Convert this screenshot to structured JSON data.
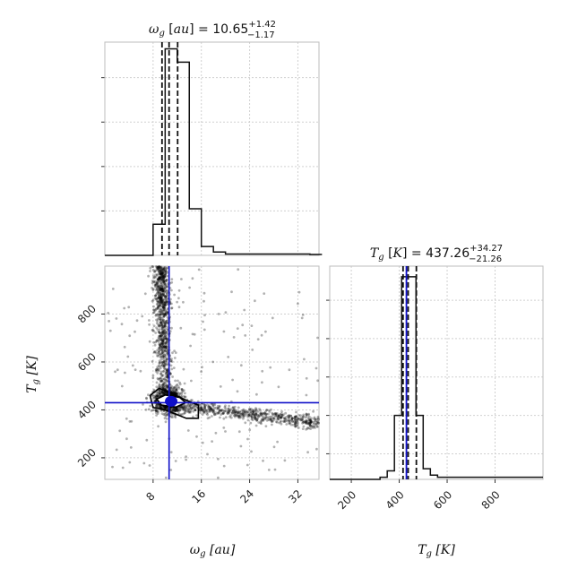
{
  "chart_data": {
    "type": "corner-plot",
    "parameters": [
      {
        "id": "omega_g",
        "symbol": "ω",
        "subscript": "g",
        "unit": "au",
        "median": "10.65",
        "plus": "+1.42",
        "minus": "−1.17",
        "truth": 10.65,
        "quantiles": [
          9.48,
          10.65,
          12.07
        ],
        "hist_edges": [
          0,
          2,
          4,
          6,
          8,
          10,
          12,
          14,
          16,
          18,
          20,
          22,
          24,
          26,
          28,
          30,
          32,
          34,
          36
        ],
        "hist_counts": [
          0,
          0,
          0,
          0,
          0.14,
          0.93,
          0.87,
          0.21,
          0.04,
          0.015,
          0.006,
          0.006,
          0.006,
          0.006,
          0.006,
          0.006,
          0.006,
          0.004
        ],
        "range": [
          0,
          35.5
        ],
        "ticks": [
          8,
          16,
          24,
          32
        ],
        "tick_labels": [
          "8",
          "16",
          "24",
          "32"
        ]
      },
      {
        "id": "T_g",
        "symbol": "T",
        "subscript": "g",
        "unit": "K",
        "median": "437.26",
        "plus": "+34.27",
        "minus": "−21.26",
        "truth": 430,
        "quantiles": [
          416,
          437.26,
          471.5
        ],
        "hist_edges": [
          110,
          140,
          170,
          200,
          230,
          260,
          290,
          320,
          350,
          380,
          410,
          440,
          470,
          500,
          530,
          560,
          590,
          620,
          650,
          680,
          710,
          740,
          770,
          800,
          830,
          860,
          890,
          920,
          950,
          980,
          1000
        ],
        "hist_counts": [
          0,
          0,
          0,
          0,
          0,
          0,
          0,
          0.01,
          0.04,
          0.3,
          0.95,
          0.95,
          0.3,
          0.05,
          0.02,
          0.01,
          0.01,
          0.01,
          0.01,
          0.01,
          0.01,
          0.01,
          0.01,
          0.01,
          0.01,
          0.01,
          0.01,
          0.01,
          0.01,
          0.01
        ],
        "range": [
          110,
          1000
        ],
        "ticks": [
          200,
          400,
          600,
          800
        ],
        "tick_labels": [
          "200",
          "400",
          "600",
          "800"
        ]
      }
    ],
    "truth_color": "#1010c8",
    "hist_color": "#111111",
    "grid": true
  }
}
